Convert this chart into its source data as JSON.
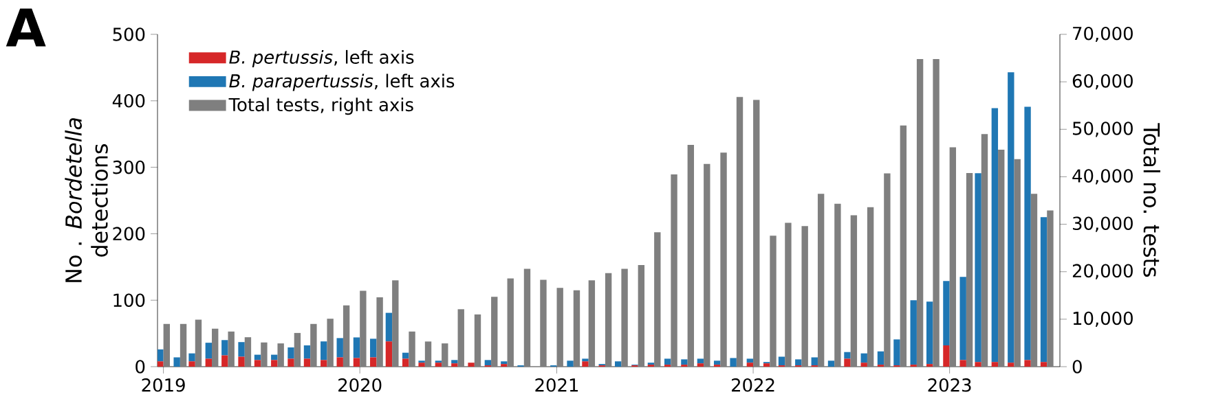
{
  "chart_data": {
    "type": "bar",
    "stacked": true,
    "legend": "top left",
    "annotations": [
      "A"
    ],
    "ylabel": "No . *Bordetella* detections",
    "y2label": "Total no. tests",
    "x": [
      "2019-01",
      "2019-02",
      "2019-03",
      "2019-04",
      "2019-05",
      "2019-06",
      "2019-07",
      "2019-08",
      "2019-09",
      "2019-10",
      "2019-11",
      "2019-12",
      "2020-01",
      "2020-02",
      "2020-03",
      "2020-04",
      "2020-05",
      "2020-06",
      "2020-07",
      "2020-08",
      "2020-09",
      "2020-10",
      "2020-11",
      "2020-12",
      "2021-01",
      "2021-02",
      "2021-03",
      "2021-04",
      "2021-05",
      "2021-06",
      "2021-07",
      "2021-08",
      "2021-09",
      "2021-10",
      "2021-11",
      "2021-12",
      "2022-01",
      "2022-02",
      "2022-03",
      "2022-04",
      "2022-05",
      "2022-06",
      "2022-07",
      "2022-08",
      "2022-09",
      "2022-10",
      "2022-11",
      "2022-12",
      "2023-01",
      "2023-02",
      "2023-03",
      "2023-04",
      "2023-05",
      "2023-06",
      "2023-07"
    ],
    "xlim": [
      "2018-12-21",
      "2023-07-25"
    ],
    "xticks": [
      "2019",
      "2020",
      "2021",
      "2022",
      "2023"
    ],
    "ylim": [
      0,
      500
    ],
    "yticks": [
      0,
      100,
      200,
      300,
      400,
      500
    ],
    "y2lim": [
      0,
      70000
    ],
    "y2ticks": [
      0,
      {
        "value": 10000,
        "label": "10,000"
      },
      {
        "value": 20000,
        "label": "20,000"
      },
      {
        "value": 30000,
        "label": "30,000"
      },
      {
        "value": 40000,
        "label": "40,000"
      },
      {
        "value": 50000,
        "label": "50,000"
      },
      {
        "value": 60000,
        "label": "60,000"
      },
      {
        "value": 70000,
        "label": "70,000"
      }
    ],
    "series": [
      {
        "name": "*B. pertussis*, left axis",
        "color": "#d62728",
        "values": [
          8,
          0,
          8,
          12,
          17,
          15,
          10,
          10,
          12,
          12,
          10,
          14,
          13,
          14,
          38,
          12,
          6,
          6,
          5,
          6,
          2,
          4,
          0,
          0,
          0,
          0,
          8,
          2,
          0,
          2,
          3,
          3,
          3,
          5,
          3,
          0,
          6,
          5,
          2,
          2,
          2,
          0,
          12,
          6,
          3,
          2,
          3,
          4,
          32,
          10,
          7,
          7,
          6,
          10,
          7
        ]
      },
      {
        "name": "*B. parapertussis*, left axis",
        "color": "#1f77b4",
        "values": [
          18,
          14,
          12,
          24,
          23,
          22,
          8,
          8,
          17,
          20,
          28,
          29,
          31,
          28,
          43,
          9,
          3,
          3,
          5,
          0,
          8,
          4,
          2,
          0,
          2,
          9,
          4,
          2,
          8,
          1,
          3,
          9,
          8,
          7,
          6,
          13,
          6,
          2,
          13,
          9,
          12,
          9,
          10,
          14,
          20,
          39,
          97,
          94,
          97,
          125,
          284,
          382,
          437,
          381,
          218
        ]
      },
      {
        "name": "Total tests, right axis",
        "color": "#7f7f7f",
        "axis": "y2",
        "values": [
          9000,
          9000,
          9900,
          8000,
          7400,
          6200,
          5100,
          4900,
          7100,
          9000,
          10100,
          12900,
          16000,
          14600,
          18200,
          7400,
          5300,
          4900,
          12100,
          11000,
          14700,
          18600,
          20600,
          18300,
          16600,
          16100,
          18200,
          19700,
          20600,
          21400,
          28300,
          40500,
          46700,
          42700,
          45100,
          56800,
          56200,
          27600,
          30300,
          29600,
          36400,
          34300,
          31900,
          33600,
          40700,
          50800,
          64800,
          64800,
          46200,
          40800,
          49000,
          45700,
          43700,
          36400,
          32900
        ]
      }
    ]
  }
}
